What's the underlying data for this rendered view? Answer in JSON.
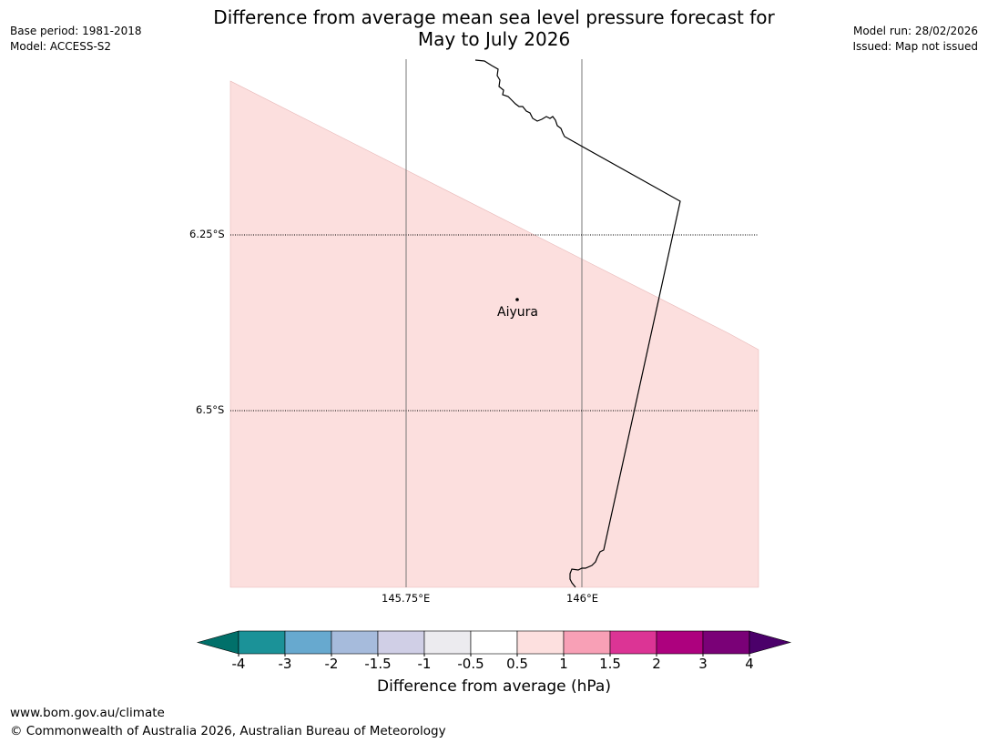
{
  "title": {
    "line1": "Difference from average mean sea level pressure forecast for",
    "line2": "May to July 2026"
  },
  "meta_left": {
    "base_period": "Base period: 1981-2018",
    "model": "Model: ACCESS-S2"
  },
  "meta_right": {
    "model_run": "Model run: 28/02/2026",
    "issued": "Issued: Map not issued"
  },
  "map": {
    "lat_labels": [
      "6.25°S",
      "6.5°S"
    ],
    "lon_labels": [
      "145.75°E",
      "146°E"
    ],
    "places": [
      {
        "name": "Aiyura",
        "marker": "dot-icon"
      }
    ],
    "shaded_category": "0.5 to 1",
    "shaded_color": "#fcdfde"
  },
  "colorbar": {
    "title": "Difference from average (hPa)",
    "ticks": [
      "-4",
      "-3",
      "-2",
      "-1.5",
      "-1",
      "-0.5",
      "0.5",
      "1",
      "1.5",
      "2",
      "3",
      "4"
    ],
    "colors": [
      "#1b9298",
      "#67a9cf",
      "#a6bbdc",
      "#d0cfe6",
      "#ecebef",
      "#ffffff",
      "#fde0df",
      "#f8a0b6",
      "#dc3495",
      "#ad017e",
      "#7a0177"
    ],
    "under_color": "#01706a",
    "over_color": "#4b006a"
  },
  "footer": {
    "url": "www.bom.gov.au/climate",
    "copyright": "© Commonwealth of Australia 2026, Australian Bureau of Meteorology"
  }
}
